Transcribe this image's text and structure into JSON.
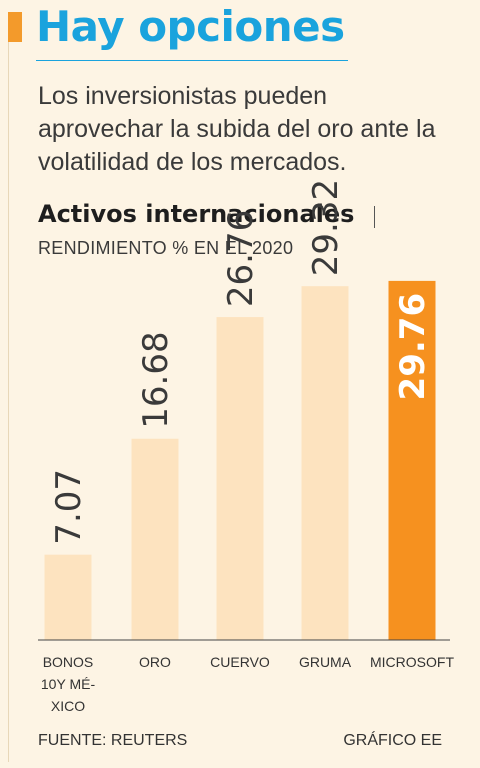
{
  "headline": {
    "title": "Hay opciones",
    "subtitle": "Los inversionistas pueden aprovechar la subida del oro ante la volatilidad de los mercados."
  },
  "chart_data": {
    "type": "bar",
    "title": "Activos internacionales",
    "subtitle": "RENDIMIENTO % EN EL 2020",
    "categories": [
      "BONOS 10Y MÉXICO",
      "ORO",
      "CUERVO",
      "GRUMA",
      "MICROSOFT"
    ],
    "category_lines": [
      [
        "BONOS",
        "10Y MÉ-",
        "XICO"
      ],
      [
        "ORO"
      ],
      [
        "CUERVO"
      ],
      [
        "GRUMA"
      ],
      [
        "MICROSOFT"
      ]
    ],
    "values": [
      7.07,
      16.68,
      26.76,
      29.32,
      29.76
    ],
    "value_labels": [
      "7.07",
      "16.68",
      "26.76",
      "29.32",
      "29.76"
    ],
    "highlight_index": 4,
    "ylim": [
      0,
      30
    ],
    "grid": false,
    "colors": {
      "bar": "#fde3bf",
      "highlight": "#f6911f",
      "label": "#3a3a3a",
      "highlight_label": "#ffffff"
    }
  },
  "footer": {
    "source": "FUENTE: REUTERS",
    "credit": "GRÁFICO EE"
  }
}
